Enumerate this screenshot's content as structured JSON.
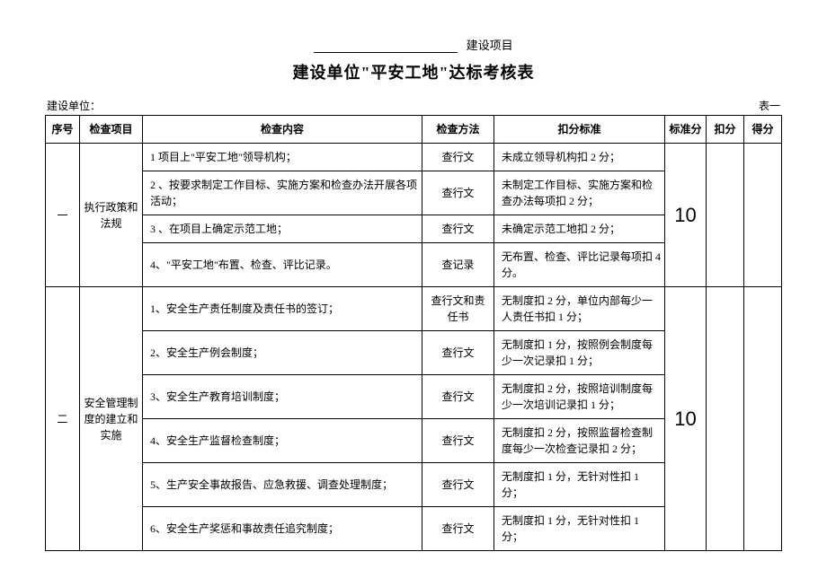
{
  "header": {
    "suffix": "建设项目",
    "title": "建设单位\"平安工地\"达标考核表",
    "unit_label": "建设单位：",
    "table_no": "表一"
  },
  "columns": {
    "seq": "序号",
    "item": "检查项目",
    "content": "检查内容",
    "method": "检查方法",
    "deduct": "扣分标准",
    "std": "标准分",
    "ded": "扣分",
    "score": "得分"
  },
  "sections": [
    {
      "seq": "一",
      "item": "执行政策和法规",
      "std_score": "10",
      "rows": [
        {
          "content": "1 项目上\"平安工地\"领导机构；",
          "method": "查行文",
          "deduct": "未成立领导机构扣 2 分；"
        },
        {
          "content": "2 、按要求制定工作目标、实施方案和检查办法开展各项活动；",
          "method": "查行文",
          "deduct": "未制定工作目标、实施方案和检查办法每项扣 2 分；"
        },
        {
          "content": "3 、在项目上确定示范工地；",
          "method": "查行文",
          "deduct": "未确定示范工地扣 2 分；"
        },
        {
          "content": "4、\"平安工地\"布置、检查、评比记录。",
          "method": "查记录",
          "deduct": "无布置、检查、评比记录每项扣 4 分。"
        }
      ]
    },
    {
      "seq": "二",
      "item": "安全管理制度的建立和实施",
      "std_score": "10",
      "rows": [
        {
          "content": "1、安全生产责任制度及责任书的签订；",
          "method": "查行文和责任书",
          "deduct": "无制度扣 2 分，单位内部每少一人责任书扣 1 分；"
        },
        {
          "content": "2、安全生产例会制度；",
          "method": "查行文",
          "deduct": "无制度扣 1 分，按照例会制度每少一次记录扣 1 分；"
        },
        {
          "content": "3、安全生产教育培训制度；",
          "method": "查行文",
          "deduct": "无制度扣 2 分，按照培训制度每少一次培训记录扣 1 分；"
        },
        {
          "content": "4、安全生产监督检查制度；",
          "method": "查行文",
          "deduct": "无制度扣 2 分，按照监督检查制度每少一次检查记录扣 2 分；"
        },
        {
          "content": "5、生产安全事故报告、应急救援、调查处理制度；",
          "method": "查行文",
          "deduct": "无制度扣 1 分，无针对性扣 1 分；"
        },
        {
          "content": "6、安全生产奖惩和事故责任追究制度；",
          "method": "查行文",
          "deduct": "无制度扣 1 分，无针对性扣 1 分；"
        }
      ]
    }
  ]
}
